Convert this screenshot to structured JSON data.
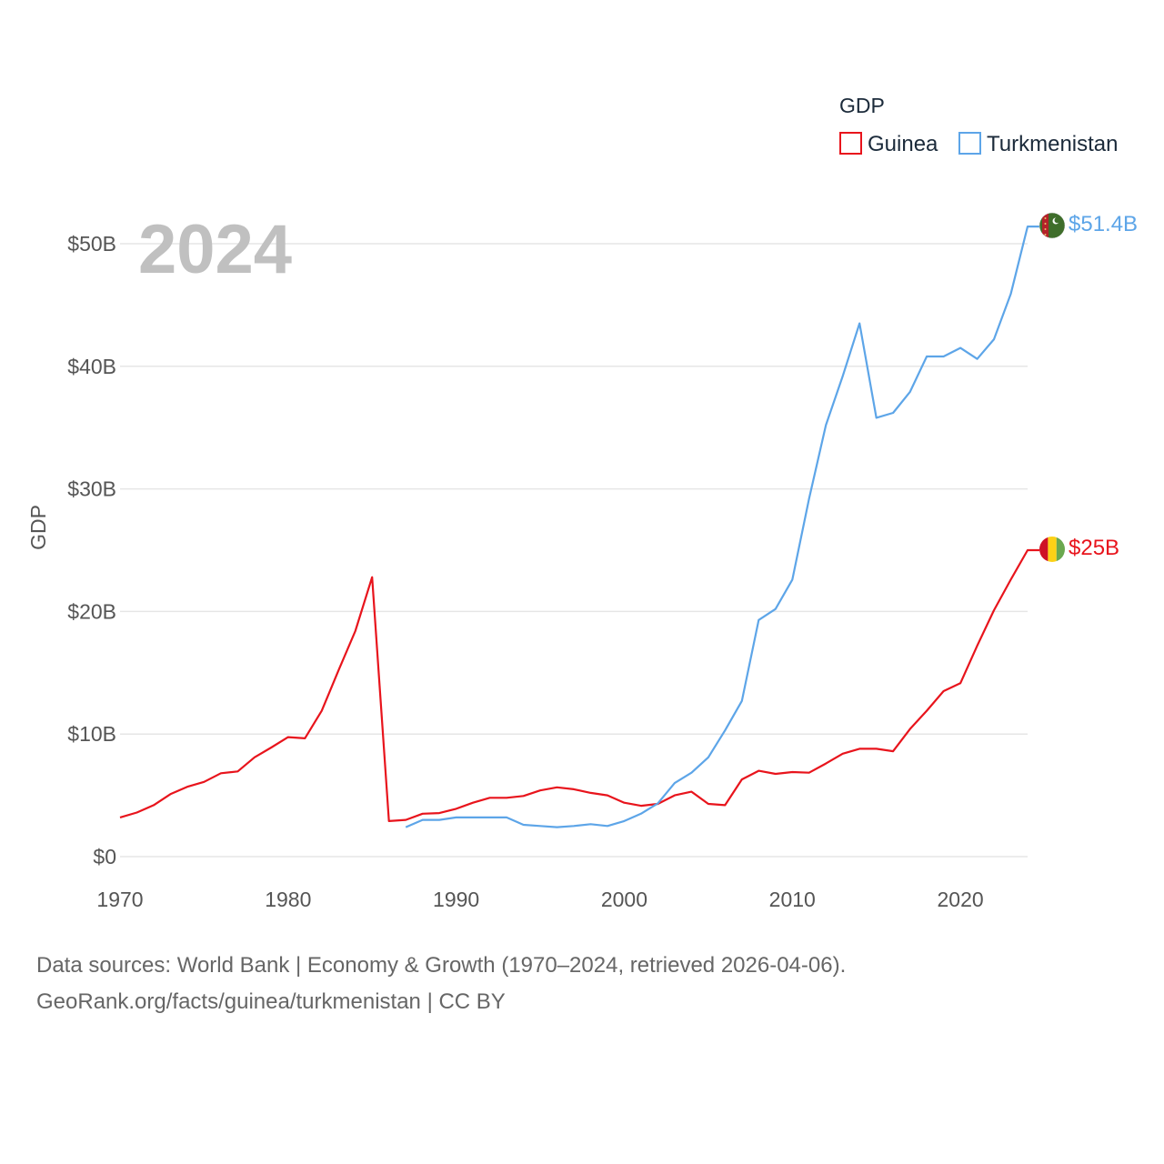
{
  "chart_data": {
    "type": "line",
    "year_label": "2024",
    "ylabel": "GDP",
    "legend_title": "GDP",
    "ylim": [
      0,
      55
    ],
    "y_ticks": [
      {
        "value": 0,
        "label": "$0"
      },
      {
        "value": 10,
        "label": "$10B"
      },
      {
        "value": 20,
        "label": "$20B"
      },
      {
        "value": 30,
        "label": "$30B"
      },
      {
        "value": 40,
        "label": "$40B"
      },
      {
        "value": 50,
        "label": "$50B"
      }
    ],
    "xlim": [
      1970,
      2024
    ],
    "x_ticks": [
      {
        "value": 1970,
        "label": "1970"
      },
      {
        "value": 1980,
        "label": "1980"
      },
      {
        "value": 1990,
        "label": "1990"
      },
      {
        "value": 2000,
        "label": "2000"
      },
      {
        "value": 2010,
        "label": "2010"
      },
      {
        "value": 2020,
        "label": "2020"
      }
    ],
    "series": [
      {
        "name": "Guinea",
        "color": "#e8141c",
        "end_label": "$25B",
        "flag": "guinea-flag",
        "x": [
          1970,
          1971,
          1972,
          1973,
          1974,
          1975,
          1976,
          1977,
          1978,
          1979,
          1980,
          1981,
          1982,
          1983,
          1984,
          1985,
          1986,
          1987,
          1988,
          1989,
          1990,
          1991,
          1992,
          1993,
          1994,
          1995,
          1996,
          1997,
          1998,
          1999,
          2000,
          2001,
          2002,
          2003,
          2004,
          2005,
          2006,
          2007,
          2008,
          2009,
          2010,
          2011,
          2012,
          2013,
          2014,
          2015,
          2016,
          2017,
          2018,
          2019,
          2020,
          2021,
          2022,
          2023,
          2024
        ],
        "values": [
          3.2,
          3.6,
          4.2,
          5.1,
          5.7,
          6.1,
          6.8,
          6.95,
          8.1,
          8.9,
          9.75,
          9.65,
          11.9,
          15.2,
          18.4,
          22.8,
          2.9,
          3.0,
          3.5,
          3.55,
          3.9,
          4.4,
          4.8,
          4.8,
          4.95,
          5.4,
          5.65,
          5.5,
          5.2,
          5.0,
          4.4,
          4.15,
          4.3,
          5.0,
          5.3,
          4.3,
          4.2,
          6.3,
          7.0,
          6.75,
          6.9,
          6.85,
          7.6,
          8.4,
          8.8,
          8.8,
          8.6,
          10.4,
          11.9,
          13.5,
          14.15,
          17.2,
          20.1,
          22.6,
          25.0
        ]
      },
      {
        "name": "Turkmenistan",
        "color": "#5da5e8",
        "end_label": "$51.4B",
        "flag": "turkmenistan-flag",
        "x": [
          1987,
          1988,
          1989,
          1990,
          1991,
          1992,
          1993,
          1994,
          1995,
          1996,
          1997,
          1998,
          1999,
          2000,
          2001,
          2002,
          2003,
          2004,
          2005,
          2006,
          2007,
          2008,
          2009,
          2010,
          2011,
          2012,
          2013,
          2014,
          2015,
          2016,
          2017,
          2018,
          2019,
          2020,
          2021,
          2022,
          2023,
          2024
        ],
        "values": [
          2.4,
          3.0,
          3.0,
          3.2,
          3.2,
          3.2,
          3.2,
          2.6,
          2.5,
          2.4,
          2.5,
          2.65,
          2.5,
          2.9,
          3.5,
          4.35,
          6.0,
          6.85,
          8.1,
          10.3,
          12.7,
          19.3,
          20.2,
          22.6,
          29.2,
          35.2,
          39.2,
          43.5,
          35.8,
          36.2,
          37.9,
          40.8,
          40.8,
          41.5,
          40.6,
          42.2,
          45.9,
          51.4
        ]
      }
    ]
  },
  "source": {
    "line1": "Data sources: World Bank | Economy & Growth (1970–2024, retrieved 2026-04-06).",
    "line2": "GeoRank.org/facts/guinea/turkmenistan | CC BY"
  }
}
